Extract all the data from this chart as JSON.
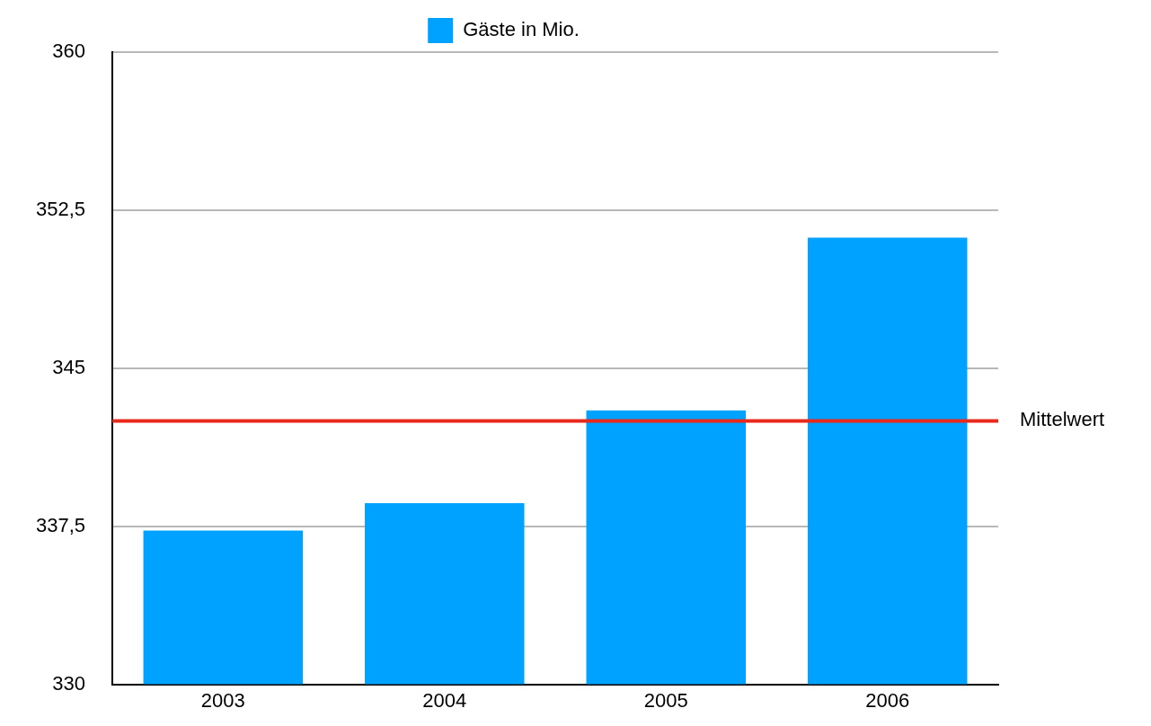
{
  "chart_data": {
    "type": "bar",
    "categories": [
      "2003",
      "2004",
      "2005",
      "2006"
    ],
    "series": [
      {
        "name": "Gäste in Mio.",
        "color": "#00a2ff",
        "values": [
          337.3,
          338.6,
          343.0,
          351.2
        ]
      }
    ],
    "ylim": [
      330,
      360
    ],
    "yticks": [
      330,
      {
        "value": 337.5,
        "label": "337,5"
      },
      345,
      {
        "value": 352.5,
        "label": "352,5"
      },
      360
    ],
    "ref_lines": [
      {
        "axis": "y",
        "value": 342.5,
        "label": "Mittelwert",
        "color": "#e8291c"
      }
    ],
    "grid": "y",
    "legend": "top"
  }
}
